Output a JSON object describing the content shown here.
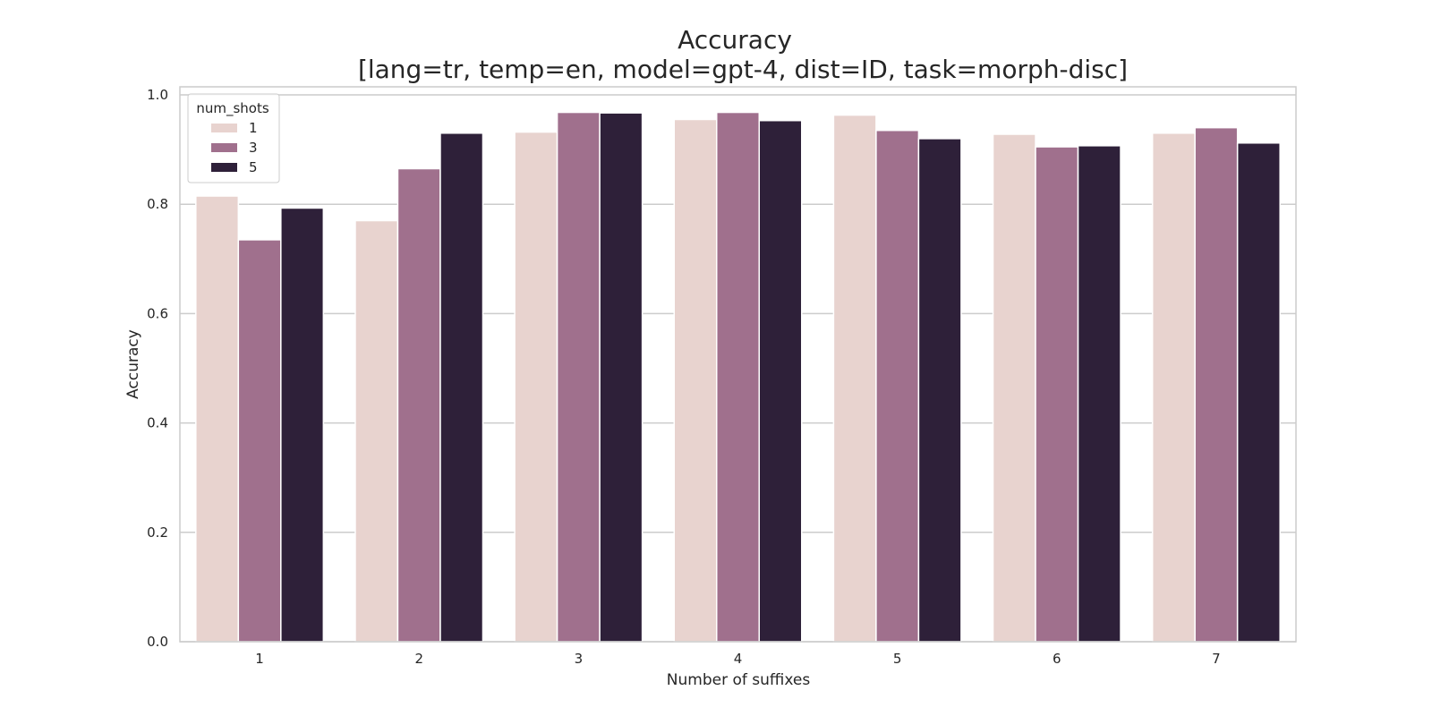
{
  "chart_data": {
    "type": "bar",
    "title": "Accuracy",
    "subtitle": "[lang=tr, temp=en, model=gpt-4, dist=ID, task=morph-disc]",
    "xlabel": "Number of suffixes",
    "ylabel": "Accuracy",
    "categories": [
      "1",
      "2",
      "3",
      "4",
      "5",
      "6",
      "7"
    ],
    "ylim": [
      0,
      1.0
    ],
    "yticks": [
      "0.0",
      "0.2",
      "0.4",
      "0.6",
      "0.8",
      "1.0"
    ],
    "grid": "horizontal",
    "legend_title": "num_shots",
    "legend_position": "top-left",
    "series": [
      {
        "name": "1",
        "color": "#e8d3cf",
        "values": [
          0.815,
          0.77,
          0.932,
          0.955,
          0.963,
          0.928,
          0.93
        ]
      },
      {
        "name": "3",
        "color": "#a0708d",
        "values": [
          0.735,
          0.865,
          0.968,
          0.968,
          0.935,
          0.905,
          0.94
        ]
      },
      {
        "name": "5",
        "color": "#2e2039",
        "values": [
          0.793,
          0.93,
          0.967,
          0.953,
          0.92,
          0.907,
          0.912
        ]
      }
    ]
  }
}
